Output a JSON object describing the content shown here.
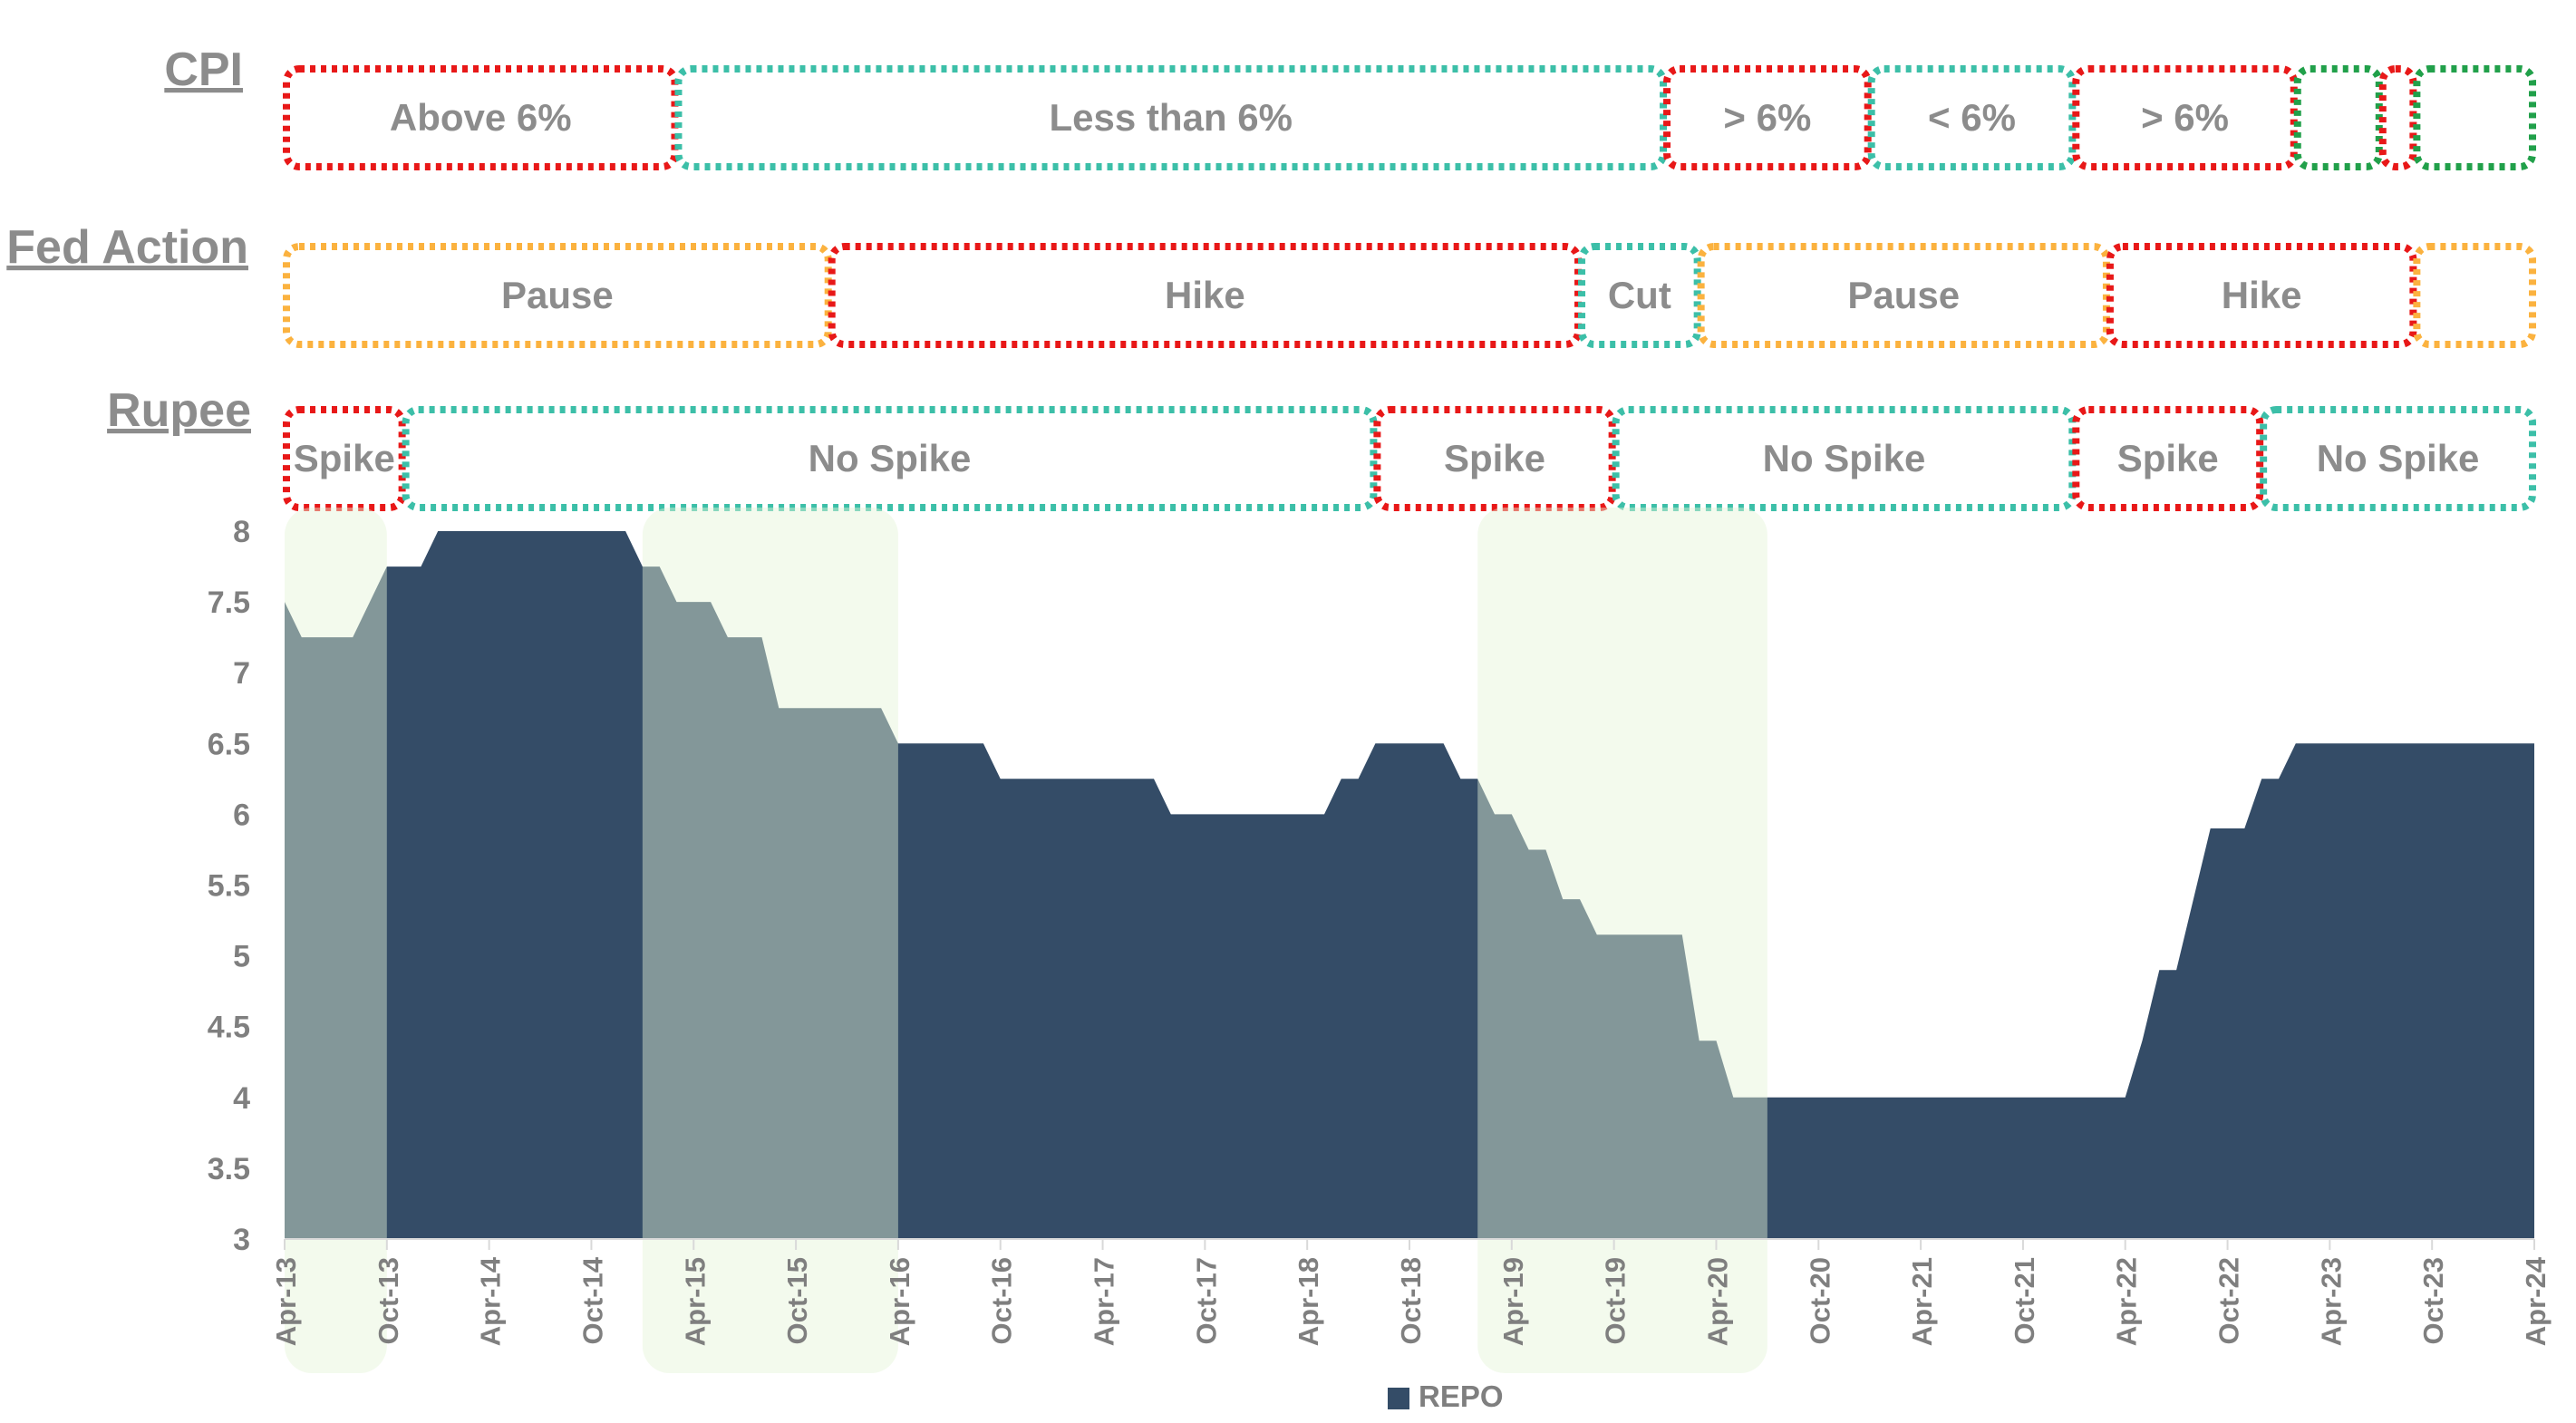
{
  "colors": {
    "area": "#344C67",
    "highlight": "#E4F3D8",
    "label_gray": "#8C8C8C",
    "axis_gray": "#7F7F7F",
    "red": "#E81818",
    "teal": "#3CBFA8",
    "orange": "#FBB23F",
    "green": "#21A04A"
  },
  "bands": [
    {
      "label": "CPI",
      "segments": [
        {
          "text": "Above 6%",
          "color": "red",
          "start": "Apr-13",
          "end": "Mar-15"
        },
        {
          "text": "Less than 6%",
          "color": "teal",
          "start": "Mar-15",
          "end": "Jan-20"
        },
        {
          "text": "> 6%",
          "color": "red",
          "start": "Jan-20",
          "end": "Jan-21"
        },
        {
          "text": "< 6%",
          "color": "teal",
          "start": "Jan-21",
          "end": "Jan-22"
        },
        {
          "text": "> 6%",
          "color": "red",
          "start": "Jan-22",
          "end": "Feb-23"
        },
        {
          "text": "",
          "color": "green",
          "start": "Feb-23",
          "end": "Jul-23"
        },
        {
          "text": "",
          "color": "red",
          "start": "Jul-23",
          "end": "Sep-23"
        },
        {
          "text": "",
          "color": "green",
          "start": "Sep-23",
          "end": "Apr-24"
        }
      ]
    },
    {
      "label": "Fed Action",
      "segments": [
        {
          "text": "Pause",
          "color": "orange",
          "start": "Apr-13",
          "end": "Dec-15"
        },
        {
          "text": "Hike",
          "color": "red",
          "start": "Dec-15",
          "end": "Aug-19"
        },
        {
          "text": "Cut",
          "color": "teal",
          "start": "Aug-19",
          "end": "Mar-20"
        },
        {
          "text": "Pause",
          "color": "orange",
          "start": "Mar-20",
          "end": "Mar-22"
        },
        {
          "text": "Hike",
          "color": "red",
          "start": "Mar-22",
          "end": "Sep-23"
        },
        {
          "text": "",
          "color": "orange",
          "start": "Sep-23",
          "end": "Apr-24"
        }
      ]
    },
    {
      "label": "Rupee",
      "segments": [
        {
          "text": "Spike",
          "color": "red",
          "start": "Apr-13",
          "end": "Nov-13"
        },
        {
          "text": "No Spike",
          "color": "teal",
          "start": "Nov-13",
          "end": "Aug-18"
        },
        {
          "text": "Spike",
          "color": "red",
          "start": "Aug-18",
          "end": "Oct-19"
        },
        {
          "text": "No Spike",
          "color": "teal",
          "start": "Oct-19",
          "end": "Jan-22"
        },
        {
          "text": "Spike",
          "color": "red",
          "start": "Jan-22",
          "end": "Dec-22"
        },
        {
          "text": "No Spike",
          "color": "teal",
          "start": "Dec-22",
          "end": "Apr-24"
        }
      ]
    }
  ],
  "highlights": [
    {
      "start": "Apr-13",
      "end": "Oct-13"
    },
    {
      "start": "Jan-15",
      "end": "Apr-16"
    },
    {
      "start": "Feb-19",
      "end": "Jul-20"
    }
  ],
  "chart_data": {
    "type": "area",
    "series": [
      {
        "name": "REPO",
        "points": [
          [
            "Apr-13",
            7.5
          ],
          [
            "May-13",
            7.25
          ],
          [
            "Jun-13",
            7.25
          ],
          [
            "Jul-13",
            7.25
          ],
          [
            "Aug-13",
            7.25
          ],
          [
            "Sep-13",
            7.5
          ],
          [
            "Oct-13",
            7.75
          ],
          [
            "Nov-13",
            7.75
          ],
          [
            "Dec-13",
            7.75
          ],
          [
            "Jan-14",
            8.0
          ],
          [
            "Feb-14",
            8.0
          ],
          [
            "Mar-14",
            8.0
          ],
          [
            "Apr-14",
            8.0
          ],
          [
            "May-14",
            8.0
          ],
          [
            "Jun-14",
            8.0
          ],
          [
            "Jul-14",
            8.0
          ],
          [
            "Aug-14",
            8.0
          ],
          [
            "Sep-14",
            8.0
          ],
          [
            "Oct-14",
            8.0
          ],
          [
            "Nov-14",
            8.0
          ],
          [
            "Dec-14",
            8.0
          ],
          [
            "Jan-15",
            7.75
          ],
          [
            "Feb-15",
            7.75
          ],
          [
            "Mar-15",
            7.5
          ],
          [
            "Apr-15",
            7.5
          ],
          [
            "May-15",
            7.5
          ],
          [
            "Jun-15",
            7.25
          ],
          [
            "Jul-15",
            7.25
          ],
          [
            "Aug-15",
            7.25
          ],
          [
            "Sep-15",
            6.75
          ],
          [
            "Oct-15",
            6.75
          ],
          [
            "Nov-15",
            6.75
          ],
          [
            "Dec-15",
            6.75
          ],
          [
            "Jan-16",
            6.75
          ],
          [
            "Feb-16",
            6.75
          ],
          [
            "Mar-16",
            6.75
          ],
          [
            "Apr-16",
            6.5
          ],
          [
            "May-16",
            6.5
          ],
          [
            "Jun-16",
            6.5
          ],
          [
            "Jul-16",
            6.5
          ],
          [
            "Aug-16",
            6.5
          ],
          [
            "Sep-16",
            6.5
          ],
          [
            "Oct-16",
            6.25
          ],
          [
            "Nov-16",
            6.25
          ],
          [
            "Dec-16",
            6.25
          ],
          [
            "Jan-17",
            6.25
          ],
          [
            "Feb-17",
            6.25
          ],
          [
            "Mar-17",
            6.25
          ],
          [
            "Apr-17",
            6.25
          ],
          [
            "May-17",
            6.25
          ],
          [
            "Jun-17",
            6.25
          ],
          [
            "Jul-17",
            6.25
          ],
          [
            "Aug-17",
            6.0
          ],
          [
            "Sep-17",
            6.0
          ],
          [
            "Oct-17",
            6.0
          ],
          [
            "Nov-17",
            6.0
          ],
          [
            "Dec-17",
            6.0
          ],
          [
            "Jan-18",
            6.0
          ],
          [
            "Feb-18",
            6.0
          ],
          [
            "Mar-18",
            6.0
          ],
          [
            "Apr-18",
            6.0
          ],
          [
            "May-18",
            6.0
          ],
          [
            "Jun-18",
            6.25
          ],
          [
            "Jul-18",
            6.25
          ],
          [
            "Aug-18",
            6.5
          ],
          [
            "Sep-18",
            6.5
          ],
          [
            "Oct-18",
            6.5
          ],
          [
            "Nov-18",
            6.5
          ],
          [
            "Dec-18",
            6.5
          ],
          [
            "Jan-19",
            6.25
          ],
          [
            "Feb-19",
            6.25
          ],
          [
            "Mar-19",
            6.0
          ],
          [
            "Apr-19",
            6.0
          ],
          [
            "May-19",
            5.75
          ],
          [
            "Jun-19",
            5.75
          ],
          [
            "Jul-19",
            5.4
          ],
          [
            "Aug-19",
            5.4
          ],
          [
            "Sep-19",
            5.15
          ],
          [
            "Oct-19",
            5.15
          ],
          [
            "Nov-19",
            5.15
          ],
          [
            "Dec-19",
            5.15
          ],
          [
            "Jan-20",
            5.15
          ],
          [
            "Feb-20",
            5.15
          ],
          [
            "Mar-20",
            4.4
          ],
          [
            "Apr-20",
            4.4
          ],
          [
            "May-20",
            4.0
          ],
          [
            "Jun-20",
            4.0
          ],
          [
            "Jul-20",
            4.0
          ],
          [
            "Aug-20",
            4.0
          ],
          [
            "Sep-20",
            4.0
          ],
          [
            "Oct-20",
            4.0
          ],
          [
            "Nov-20",
            4.0
          ],
          [
            "Dec-20",
            4.0
          ],
          [
            "Jan-21",
            4.0
          ],
          [
            "Feb-21",
            4.0
          ],
          [
            "Mar-21",
            4.0
          ],
          [
            "Apr-21",
            4.0
          ],
          [
            "May-21",
            4.0
          ],
          [
            "Jun-21",
            4.0
          ],
          [
            "Jul-21",
            4.0
          ],
          [
            "Aug-21",
            4.0
          ],
          [
            "Sep-21",
            4.0
          ],
          [
            "Oct-21",
            4.0
          ],
          [
            "Nov-21",
            4.0
          ],
          [
            "Dec-21",
            4.0
          ],
          [
            "Jan-22",
            4.0
          ],
          [
            "Feb-22",
            4.0
          ],
          [
            "Mar-22",
            4.0
          ],
          [
            "Apr-22",
            4.0
          ],
          [
            "May-22",
            4.4
          ],
          [
            "Jun-22",
            4.9
          ],
          [
            "Jul-22",
            4.9
          ],
          [
            "Aug-22",
            5.4
          ],
          [
            "Sep-22",
            5.9
          ],
          [
            "Oct-22",
            5.9
          ],
          [
            "Nov-22",
            5.9
          ],
          [
            "Dec-22",
            6.25
          ],
          [
            "Jan-23",
            6.25
          ],
          [
            "Feb-23",
            6.5
          ],
          [
            "Mar-23",
            6.5
          ],
          [
            "Apr-23",
            6.5
          ],
          [
            "May-23",
            6.5
          ],
          [
            "Jun-23",
            6.5
          ],
          [
            "Jul-23",
            6.5
          ],
          [
            "Aug-23",
            6.5
          ],
          [
            "Sep-23",
            6.5
          ],
          [
            "Oct-23",
            6.5
          ],
          [
            "Nov-23",
            6.5
          ],
          [
            "Dec-23",
            6.5
          ],
          [
            "Jan-24",
            6.5
          ],
          [
            "Feb-24",
            6.5
          ],
          [
            "Mar-24",
            6.5
          ],
          [
            "Apr-24",
            6.5
          ]
        ]
      }
    ],
    "x_ticks": [
      "Apr-13",
      "Oct-13",
      "Apr-14",
      "Oct-14",
      "Apr-15",
      "Oct-15",
      "Apr-16",
      "Oct-16",
      "Apr-17",
      "Oct-17",
      "Apr-18",
      "Oct-18",
      "Apr-19",
      "Oct-19",
      "Apr-20",
      "Oct-20",
      "Apr-21",
      "Oct-21",
      "Apr-22",
      "Oct-22",
      "Apr-23",
      "Oct-23",
      "Apr-24"
    ],
    "y_ticks": [
      "8",
      "7.5",
      "7",
      "6.5",
      "6",
      "5.5",
      "5",
      "4.5",
      "4",
      "3.5",
      "3"
    ],
    "ylim": [
      3,
      8
    ],
    "xlim": [
      "Apr-13",
      "Apr-24"
    ],
    "legend": "bottom-center",
    "grid": false
  }
}
